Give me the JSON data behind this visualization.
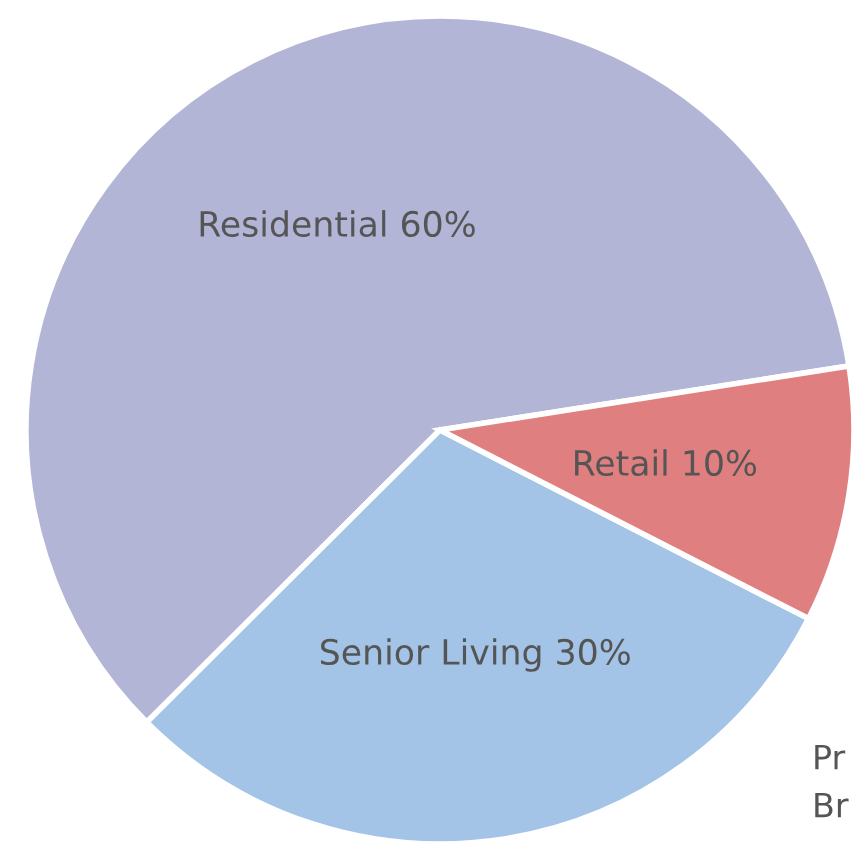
{
  "chart_data": {
    "type": "pie",
    "categories": [
      "Residential 60%",
      "Senior Living 30%",
      "Retail 10%"
    ],
    "values": [
      60,
      30,
      10
    ],
    "colors": [
      "#b3b5d6",
      "#a3c4e6",
      "#e07f80"
    ],
    "annotations": [
      "Pr",
      "Br"
    ]
  }
}
